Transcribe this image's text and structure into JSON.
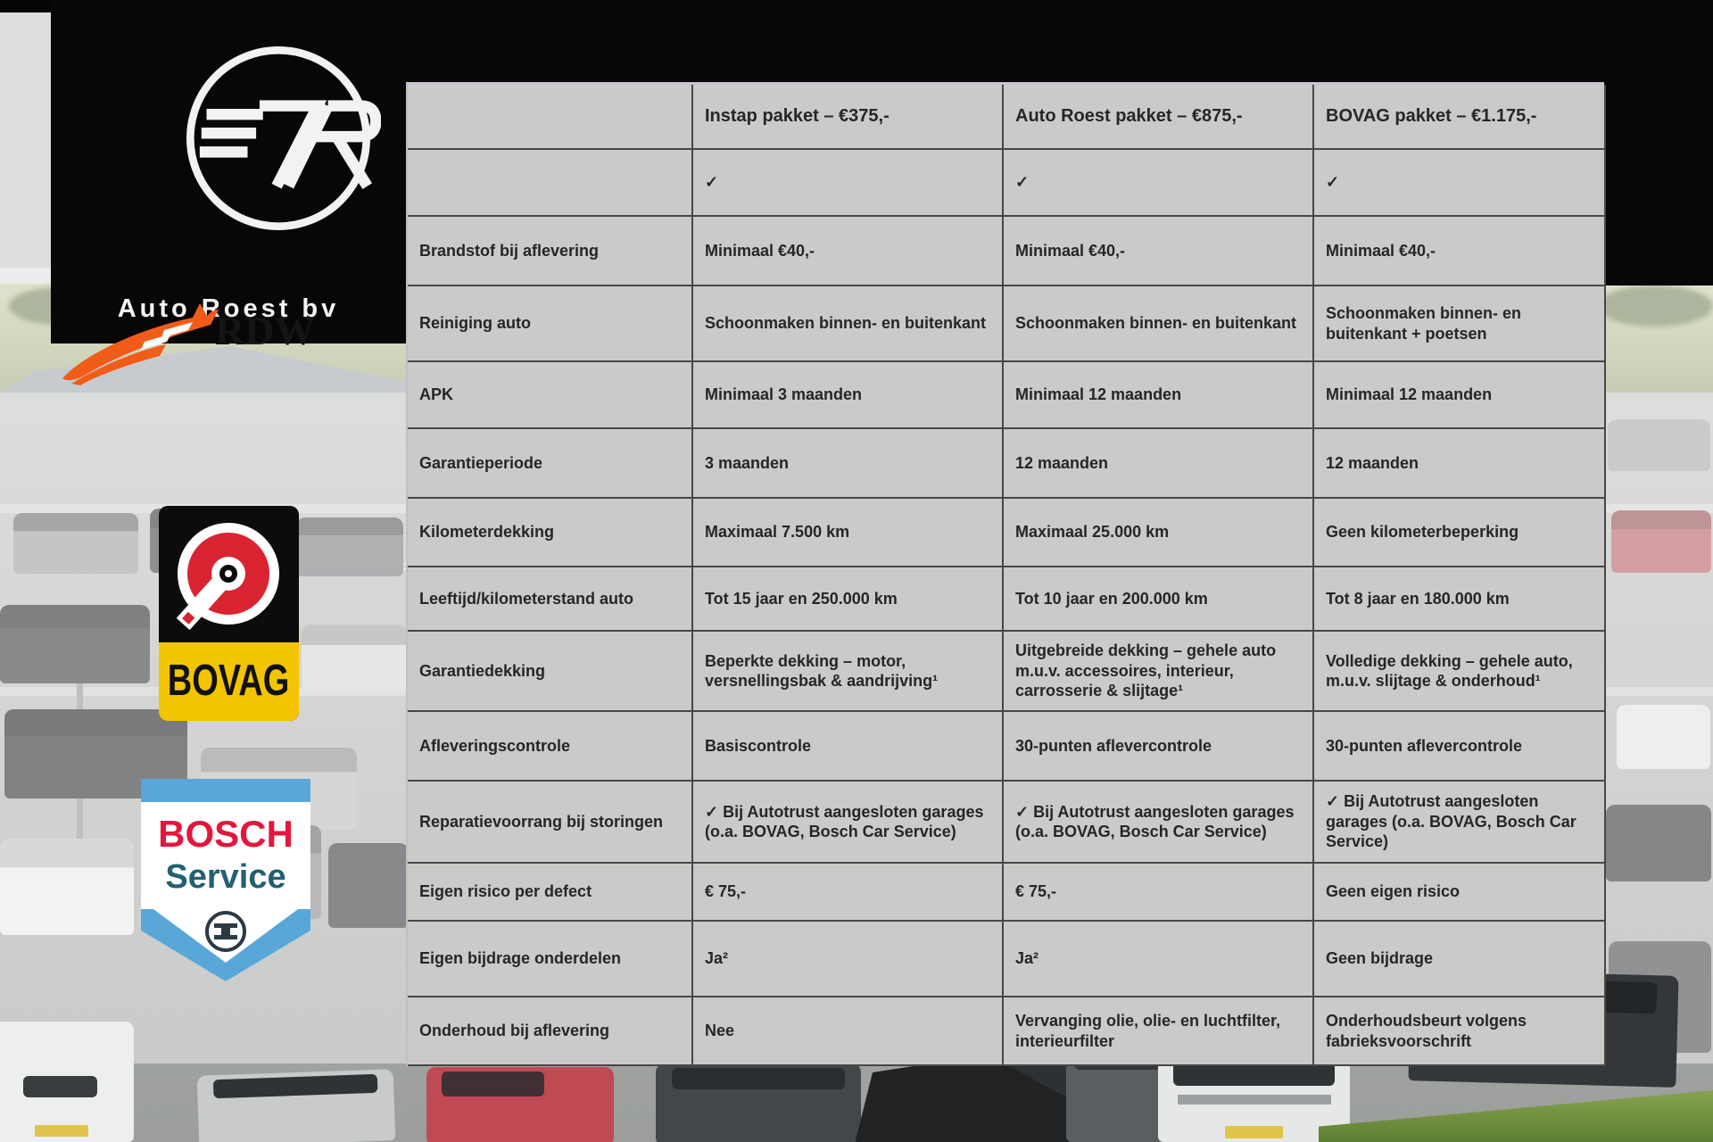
{
  "branding": {
    "company": "Auto Roest bv",
    "monogram": "7R"
  },
  "partners": {
    "rdw": {
      "label": "RDW"
    },
    "bovag": {
      "label": "BOVAG"
    },
    "bosch": {
      "label": "BOSCH",
      "sublabel": "Service"
    }
  },
  "photo": {
    "building_sign": "Auto Ro"
  },
  "table": {
    "packages": [
      "Instap pakket – €375,-",
      "Auto Roest pakket – €875,-",
      "BOVAG pakket – €1.175,-"
    ],
    "rows": [
      {
        "label": "",
        "values": [
          "✓",
          "✓",
          "✓"
        ]
      },
      {
        "label": "Brandstof bij aflevering",
        "values": [
          "Minimaal €40,-",
          "Minimaal €40,-",
          "Minimaal €40,-"
        ]
      },
      {
        "label": "Reiniging auto",
        "values": [
          "Schoonmaken binnen- en buitenkant",
          "Schoonmaken binnen- en buitenkant",
          "Schoonmaken binnen- en buitenkant + poetsen"
        ]
      },
      {
        "label": "APK",
        "values": [
          "Minimaal 3 maanden",
          "Minimaal 12 maanden",
          "Minimaal 12 maanden"
        ]
      },
      {
        "label": "Garantieperiode",
        "values": [
          "3 maanden",
          "12 maanden",
          "12 maanden"
        ]
      },
      {
        "label": "Kilometerdekking",
        "values": [
          "Maximaal 7.500 km",
          "Maximaal 25.000 km",
          "Geen kilometerbeperking"
        ]
      },
      {
        "label": "Leeftijd/kilometerstand auto",
        "values": [
          "Tot 15 jaar en 250.000 km",
          "Tot 10 jaar en 200.000 km",
          "Tot 8 jaar en 180.000 km"
        ]
      },
      {
        "label": "Garantiedekking",
        "values": [
          "Beperkte dekking – motor, versnellingsbak & aandrijving¹",
          "Uitgebreide dekking – gehele auto m.u.v. accessoires, interieur, carrosserie & slijtage¹",
          "Volledige dekking – gehele auto, m.u.v. slijtage & onderhoud¹"
        ]
      },
      {
        "label": "Afleveringscontrole",
        "values": [
          "Basiscontrole",
          "30-punten aflevercontrole",
          "30-punten aflevercontrole"
        ]
      },
      {
        "label": "Reparatievoorrang bij storingen",
        "values": [
          "✓ Bij Autotrust aangesloten garages (o.a. BOVAG, Bosch Car Service)",
          "✓ Bij Autotrust aangesloten garages (o.a. BOVAG, Bosch Car Service)",
          "✓ Bij Autotrust aangesloten garages (o.a. BOVAG, Bosch Car Service)"
        ]
      },
      {
        "label": "Eigen risico per defect",
        "values": [
          "€ 75,-",
          "€ 75,-",
          "Geen eigen risico"
        ]
      },
      {
        "label": "Eigen bijdrage onderdelen",
        "values": [
          "Ja²",
          "Ja²",
          "Geen bijdrage"
        ]
      },
      {
        "label": "Onderhoud bij aflevering",
        "values": [
          "Nee",
          "Vervanging olie, olie- en luchtfilter, interieurfilter",
          "Onderhoudsbeurt volgens fabrieksvoorschrift"
        ]
      }
    ]
  },
  "colors": {
    "table_bg": "#cbcac8",
    "table_line": "#474747",
    "table_text": "#262626",
    "top_border_lavender": "#ccc3d6",
    "black_panel": "#070707",
    "bovag_yellow": "#f2c500",
    "bovag_red": "#da2330",
    "bosch_red": "#e2173d",
    "bosch_blue": "#58a7d8",
    "bosch_teal": "#23606f",
    "rdw_orange": "#f25c19"
  }
}
